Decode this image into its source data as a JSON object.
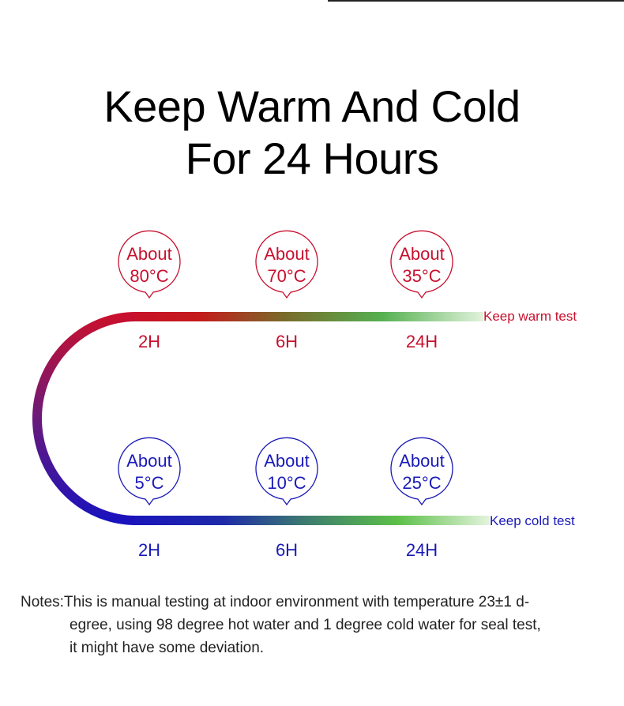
{
  "title": {
    "line1": "Keep Warm And Cold",
    "line2": "For 24 Hours"
  },
  "warm": {
    "label": "Keep warm test",
    "color": "#c8102e",
    "bubbles": [
      {
        "l1": "About",
        "l2": "80°C",
        "time": "2H"
      },
      {
        "l1": "About",
        "l2": "70°C",
        "time": "6H"
      },
      {
        "l1": "About",
        "l2": "35°C",
        "time": "24H"
      }
    ]
  },
  "cold": {
    "label": "Keep cold test",
    "color": "#1a1ab8",
    "bubbles": [
      {
        "l1": "About",
        "l2": "5°C",
        "time": "2H"
      },
      {
        "l1": "About",
        "l2": "10°C",
        "time": "6H"
      },
      {
        "l1": "About",
        "l2": "25°C",
        "time": "24H"
      }
    ]
  },
  "notes": {
    "label": "Notes:",
    "line1": "This is manual testing at indoor environment with temperature 23±1 d-",
    "line2": "egree, using 98 degree hot water and 1 degree cold water for seal test,",
    "line3": "it might have some deviation."
  }
}
